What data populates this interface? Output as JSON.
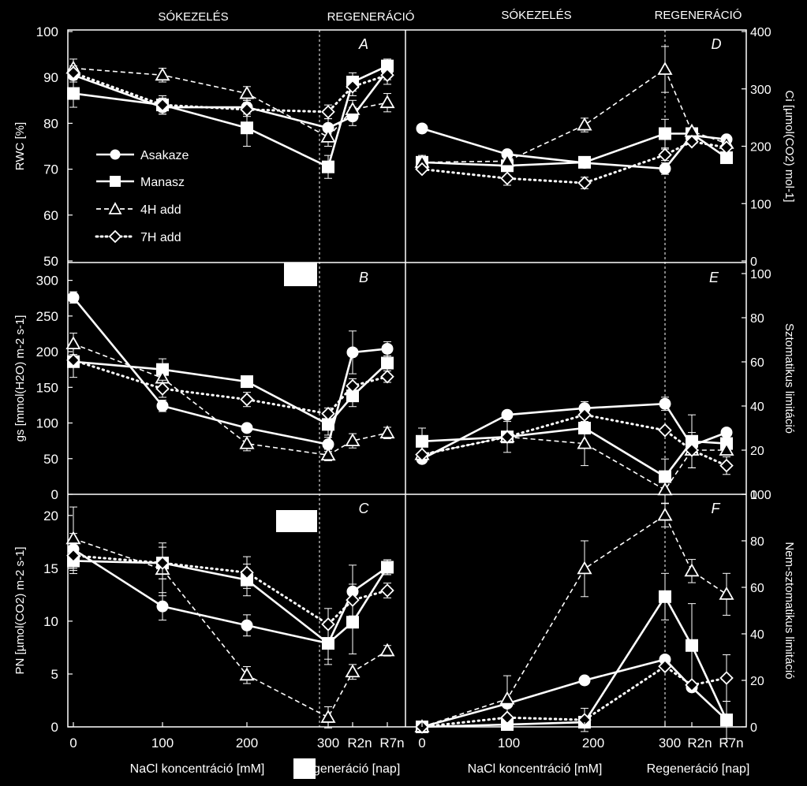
{
  "colors": {
    "background": "#000000",
    "foreground": "#ffffff"
  },
  "headers": {
    "left_treatment": "SÓKEZELÉS",
    "left_regeneration": "REGENERÁCIÓ",
    "right_treatment": "SÓKEZELÉS",
    "right_regeneration": "REGENERÁCIÓ"
  },
  "x_axis": {
    "ticks": [
      "0",
      "100",
      "200",
      "300",
      "R2n",
      "R7n"
    ],
    "left_label_conc": "NaCl koncentráció [mM]",
    "left_label_regen": "regeneráció [nap]",
    "right_label_conc": "NaCl koncentráció [mM]",
    "right_label_regen": "Regeneráció [nap]"
  },
  "legend": {
    "placement": "left inside panel A",
    "entries": [
      "Asakaze",
      "Manasz",
      "4H add",
      "7H add"
    ]
  },
  "series_styles": {
    "Asakaze": {
      "marker": "circle",
      "line": "solid",
      "fill": "#ffffff"
    },
    "Manasz": {
      "marker": "square",
      "line": "solid",
      "fill": "#ffffff"
    },
    "4H add": {
      "marker": "triangle",
      "line": "dashed",
      "fill": "#000000"
    },
    "7H add": {
      "marker": "diamond",
      "line": "dotted",
      "fill": "#000000"
    }
  },
  "chart_data": [
    {
      "type": "line",
      "panel": "A",
      "side": "left",
      "ylabel": "RWC [%]",
      "ylim": [
        50,
        100
      ],
      "yticks": [
        "50",
        "60",
        "70",
        "80",
        "90",
        "100"
      ],
      "x": [
        "0",
        "100",
        "200",
        "300",
        "R2n",
        "R7n"
      ],
      "series": [
        {
          "name": "Asakaze",
          "values": [
            90.5,
            83.5,
            83.5,
            79.0,
            81.5,
            91.5
          ],
          "err": [
            1.5,
            1.5,
            1.5,
            2,
            2,
            2
          ]
        },
        {
          "name": "Manasz",
          "values": [
            86.5,
            84.0,
            79.0,
            70.5,
            89.0,
            92.5
          ],
          "err": [
            3,
            2,
            4,
            2.5,
            2,
            1.5
          ]
        },
        {
          "name": "4H add",
          "values": [
            92.0,
            90.5,
            86.5,
            77.0,
            83.0,
            84.5
          ],
          "err": [
            2,
            1.5,
            1.5,
            2,
            2,
            2
          ]
        },
        {
          "name": "7H add",
          "values": [
            91.0,
            84.0,
            83.0,
            82.5,
            88.0,
            90.5
          ],
          "err": [
            1.5,
            1.5,
            1.5,
            1.5,
            2,
            2
          ]
        }
      ]
    },
    {
      "type": "line",
      "panel": "D",
      "side": "right",
      "ylabel": "Ci [µmol(CO2) mol-1]",
      "ylim": [
        0,
        400
      ],
      "yticks": [
        "0",
        "100",
        "200",
        "300",
        "400"
      ],
      "x": [
        "0",
        "100",
        "200",
        "300",
        "R2n",
        "R7n"
      ],
      "series": [
        {
          "name": "Asakaze",
          "values": [
            231,
            186,
            171,
            161,
            219,
            212
          ],
          "err": [
            0,
            0,
            0,
            10,
            0,
            0
          ]
        },
        {
          "name": "Manasz",
          "values": [
            172,
            166,
            172,
            222,
            222,
            180
          ],
          "err": [
            12,
            0,
            0,
            25,
            0,
            0
          ]
        },
        {
          "name": "4H add",
          "values": [
            172,
            174,
            237,
            334,
            226,
            205
          ],
          "err": [
            0,
            0,
            12,
            40,
            0,
            0
          ]
        },
        {
          "name": "7H add",
          "values": [
            160,
            144,
            136,
            185,
            208,
            198
          ],
          "err": [
            0,
            12,
            10,
            10,
            0,
            0
          ]
        }
      ]
    },
    {
      "type": "line",
      "panel": "B",
      "side": "left",
      "ylabel": "gs [mmol(H2O) m-2 s-1]",
      "ylim": [
        0,
        325
      ],
      "yticks": [
        "0",
        "50",
        "100",
        "150",
        "200",
        "250",
        "300"
      ],
      "x": [
        "0",
        "100",
        "200",
        "300",
        "R2n",
        "R7n"
      ],
      "series": [
        {
          "name": "Asakaze",
          "values": [
            276,
            124,
            93,
            70,
            199,
            204
          ],
          "err": [
            8,
            8,
            0,
            10,
            30,
            10
          ]
        },
        {
          "name": "Manasz",
          "values": [
            186,
            175,
            158,
            98,
            138,
            184
          ],
          "err": [
            22,
            15,
            0,
            15,
            15,
            15
          ]
        },
        {
          "name": "4H add",
          "values": [
            211,
            163,
            71,
            55,
            75,
            86
          ],
          "err": [
            15,
            0,
            10,
            8,
            10,
            8
          ]
        },
        {
          "name": "7H add",
          "values": [
            188,
            148,
            133,
            113,
            152,
            165
          ],
          "err": [
            0,
            12,
            10,
            8,
            10,
            8
          ]
        }
      ]
    },
    {
      "type": "line",
      "panel": "E",
      "side": "right",
      "ylabel": "Sztomatikus limitáció",
      "ylim": [
        0,
        105
      ],
      "yticks": [
        "0",
        "20",
        "40",
        "60",
        "80",
        "100"
      ],
      "x": [
        "0",
        "100",
        "200",
        "300",
        "R2n",
        "R7n"
      ],
      "series": [
        {
          "name": "Asakaze",
          "values": [
            16,
            36,
            39,
            41,
            22,
            28
          ],
          "err": [
            0,
            0,
            3,
            3,
            0,
            0
          ]
        },
        {
          "name": "Manasz",
          "values": [
            24,
            26,
            30,
            8,
            24,
            23
          ],
          "err": [
            6,
            7,
            0,
            8,
            12,
            0
          ]
        },
        {
          "name": "4H add",
          "values": [
            18,
            26,
            23,
            2,
            20,
            20
          ],
          "err": [
            0,
            0,
            10,
            6,
            8,
            0
          ]
        },
        {
          "name": "7H add",
          "values": [
            18,
            26,
            36,
            29,
            20,
            13
          ],
          "err": [
            0,
            0,
            0,
            0,
            0,
            4
          ]
        }
      ]
    },
    {
      "type": "line",
      "panel": "C",
      "side": "left",
      "ylabel": "PN [µmol(CO2) m-2 s-1]",
      "ylim": [
        0,
        22
      ],
      "yticks": [
        "0",
        "5",
        "10",
        "15",
        "20"
      ],
      "x": [
        "0",
        "100",
        "200",
        "300",
        "R2n",
        "R7n"
      ],
      "series": [
        {
          "name": "Asakaze",
          "values": [
            16.8,
            11.4,
            9.6,
            7.9,
            12.8,
            15.1
          ],
          "err": [
            1.5,
            1.3,
            1.0,
            1.5,
            2.5,
            0.7
          ]
        },
        {
          "name": "Manasz",
          "values": [
            15.7,
            15.5,
            13.9,
            7.9,
            9.9,
            15.1
          ],
          "err": [
            1.2,
            1.5,
            1.5,
            2.0,
            3.0,
            0.7
          ]
        },
        {
          "name": "4H add",
          "values": [
            17.8,
            14.9,
            4.9,
            0.9,
            5.2,
            7.2
          ],
          "err": [
            3.0,
            2.5,
            0.8,
            1.0,
            0.7,
            0.5
          ]
        },
        {
          "name": "7H add",
          "values": [
            16.2,
            15.5,
            14.6,
            9.7,
            12.0,
            12.9
          ],
          "err": [
            1.2,
            1.5,
            1.5,
            1.5,
            1.5,
            0.7
          ]
        }
      ]
    },
    {
      "type": "line",
      "panel": "F",
      "side": "right",
      "ylabel": "Nem-sztomatikus limitáció",
      "ylim": [
        0,
        100
      ],
      "yticks": [
        "0",
        "20",
        "40",
        "60",
        "80",
        "100"
      ],
      "x": [
        "0",
        "100",
        "200",
        "300",
        "R2n",
        "R7n"
      ],
      "series": [
        {
          "name": "Asakaze",
          "values": [
            0,
            10,
            20,
            29,
            17,
            3
          ],
          "err": [
            0,
            0,
            0,
            0,
            0,
            0
          ]
        },
        {
          "name": "Manasz",
          "values": [
            0,
            1,
            2,
            56,
            35,
            3
          ],
          "err": [
            0,
            0,
            0,
            10,
            18,
            8
          ]
        },
        {
          "name": "4H add",
          "values": [
            0,
            12,
            68,
            91,
            67,
            57
          ],
          "err": [
            0,
            10,
            12,
            5,
            5,
            9
          ]
        },
        {
          "name": "7H add",
          "values": [
            0,
            4,
            3,
            26,
            18,
            21
          ],
          "err": [
            0,
            0,
            5,
            0,
            0,
            10
          ]
        }
      ]
    }
  ]
}
